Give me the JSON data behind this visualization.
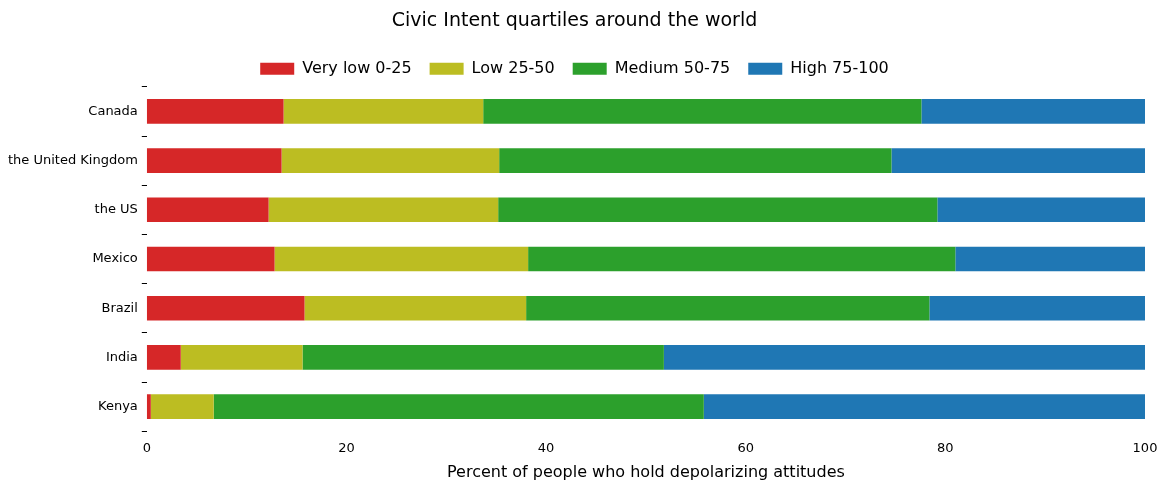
{
  "chart_data": {
    "type": "bar",
    "title": "Civic Intent quartiles around the world",
    "xlabel": "Percent of people who hold depolarizing attitudes",
    "orientation": "horizontal",
    "stacked": true,
    "categories": [
      "Canada",
      "the United Kingdom",
      "the US",
      "Mexico",
      "Brazil",
      "India",
      "Kenya"
    ],
    "series": [
      {
        "name": "Very low 0-25",
        "color": "#d62728",
        "values": [
          13.7,
          13.5,
          12.2,
          12.8,
          15.8,
          3.4,
          0.4
        ]
      },
      {
        "name": "Low 25-50",
        "color": "#bcbd22",
        "values": [
          20.0,
          21.8,
          23.0,
          25.4,
          22.2,
          12.2,
          6.3
        ]
      },
      {
        "name": "Medium 50-75",
        "color": "#2ca02c",
        "values": [
          43.9,
          39.3,
          44.0,
          42.8,
          40.4,
          36.2,
          49.1
        ]
      },
      {
        "name": "High 75-100",
        "color": "#1f77b4",
        "values": [
          22.4,
          25.4,
          20.8,
          19.0,
          21.6,
          48.2,
          44.2
        ]
      }
    ],
    "xlim": [
      0,
      100
    ],
    "xticks": [
      0,
      20,
      40,
      60,
      80,
      100
    ],
    "grid": false,
    "legend": "top"
  }
}
